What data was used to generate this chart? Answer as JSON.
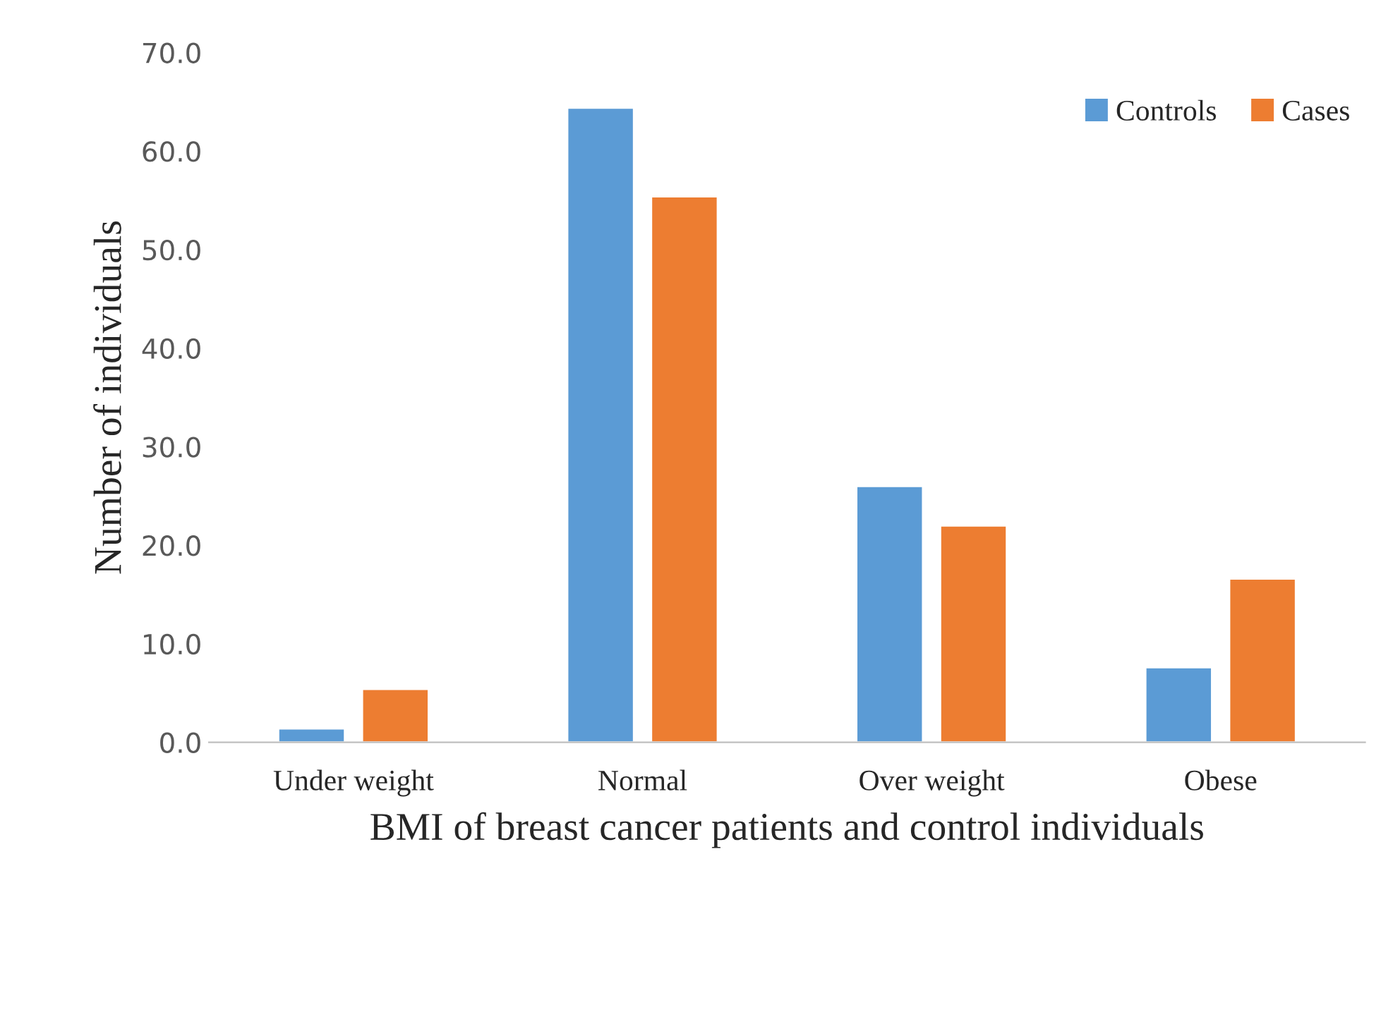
{
  "chart_data": {
    "type": "bar",
    "xlabel": "BMI of breast cancer patients and control individuals",
    "ylabel": "Number of individuals",
    "categories": [
      "Under weight",
      "Normal",
      "Over weight",
      "Obese"
    ],
    "series": [
      {
        "name": "Controls",
        "color": "#5b9bd5",
        "values": [
          1.4,
          64.4,
          26.0,
          7.6
        ]
      },
      {
        "name": "Cases",
        "color": "#ed7d31",
        "values": [
          5.4,
          55.4,
          22.0,
          16.6
        ]
      }
    ],
    "ylim": [
      0,
      70
    ],
    "yticks": [
      {
        "value": 0,
        "label": "0.0"
      },
      {
        "value": 10,
        "label": "10.0"
      },
      {
        "value": 20,
        "label": "20.0"
      },
      {
        "value": 30,
        "label": "30.0"
      },
      {
        "value": 40,
        "label": "40.0"
      },
      {
        "value": 50,
        "label": "50.0"
      },
      {
        "value": 60,
        "label": "60.0"
      },
      {
        "value": 70,
        "label": "70.0"
      }
    ],
    "legend": "top right",
    "grid": false
  }
}
